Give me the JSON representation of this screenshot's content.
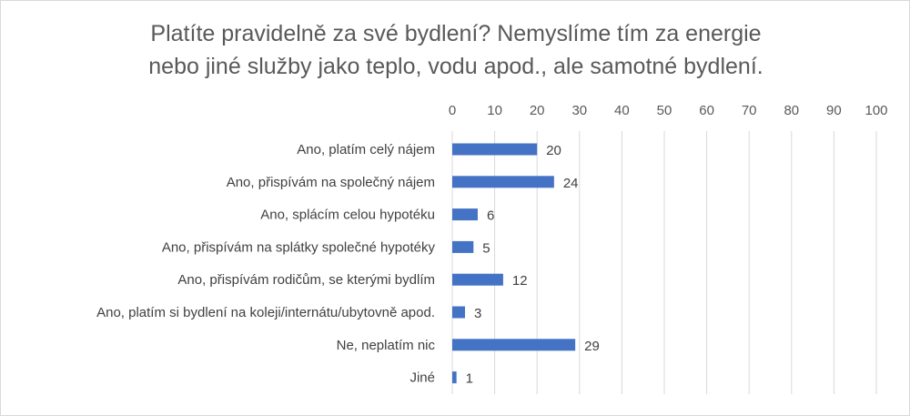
{
  "chart_data": {
    "type": "bar",
    "orientation": "horizontal",
    "title_lines": [
      "Platíte pravidelně za své bydlení? Nemyslíme tím za energie",
      "nebo jiné služby jako teplo, vodu apod., ale samotné bydlení."
    ],
    "categories": [
      "Ano, platím celý nájem",
      "Ano, přispívám na společný nájem",
      "Ano, splácím celou hypotéku",
      "Ano, přispívám na splátky společné hypotéky",
      "Ano, přispívám rodičům, se kterými bydlím",
      "Ano, platím si bydlení na koleji/internátu/ubytovně apod.",
      "Ne, neplatím nic",
      "Jiné"
    ],
    "values": [
      20,
      24,
      6,
      5,
      12,
      3,
      29,
      1
    ],
    "xlim": [
      0,
      100
    ],
    "xticks": [
      0,
      10,
      20,
      30,
      40,
      50,
      60,
      70,
      80,
      90,
      100
    ],
    "axis_position": "top",
    "grid": true,
    "data_labels": true,
    "bar_color": "#4472c4",
    "grid_color": "#d9d9d9"
  }
}
